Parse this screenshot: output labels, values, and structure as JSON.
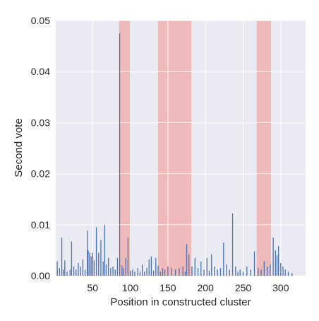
{
  "chart_data": {
    "type": "bar",
    "title": "",
    "xlabel": "Position in constructed cluster",
    "ylabel": "Second vote",
    "xlim": [
      1,
      333
    ],
    "ylim": [
      0,
      0.05
    ],
    "xticks": [
      50,
      100,
      150,
      200,
      250,
      300
    ],
    "yticks": [
      0.0,
      0.01,
      0.02,
      0.03,
      0.04,
      0.05
    ],
    "ytick_labels": [
      "0.00",
      "0.01",
      "0.02",
      "0.03",
      "0.04",
      "0.05"
    ],
    "grid": true,
    "legend": "none",
    "highlight_regions": [
      {
        "start": 85,
        "end": 101
      },
      {
        "start": 137,
        "end": 181
      },
      {
        "start": 268,
        "end": 287
      }
    ],
    "x": [
      3,
      6,
      9,
      11,
      13,
      16,
      20,
      22,
      25,
      28,
      31,
      34,
      37,
      40,
      43,
      44,
      46,
      48,
      50,
      52,
      55,
      58,
      61,
      64,
      66,
      68,
      71,
      74,
      77,
      80,
      83,
      86,
      89,
      91,
      94,
      97,
      100,
      103,
      106,
      110,
      113,
      116,
      119,
      122,
      125,
      128,
      131,
      134,
      137,
      140,
      143,
      146,
      150,
      155,
      160,
      165,
      170,
      173,
      175,
      178,
      182,
      186,
      190,
      194,
      198,
      202,
      205,
      208,
      212,
      216,
      220,
      224,
      228,
      232,
      236,
      240,
      243,
      246,
      250,
      255,
      260,
      265,
      270,
      274,
      278,
      282,
      286,
      290,
      293,
      295,
      297,
      300,
      303,
      306,
      310,
      315
    ],
    "values": [
      0.0028,
      0.0015,
      0.0075,
      0.0012,
      0.003,
      0.0008,
      0.0012,
      0.0067,
      0.0018,
      0.0012,
      0.0025,
      0.0018,
      0.0032,
      0.0012,
      0.0088,
      0.005,
      0.0045,
      0.0038,
      0.0045,
      0.003,
      0.0095,
      0.0045,
      0.007,
      0.0028,
      0.01,
      0.0022,
      0.0035,
      0.0015,
      0.0018,
      0.0012,
      0.0035,
      0.0475,
      0.002,
      0.0015,
      0.0035,
      0.0075,
      0.001,
      0.0012,
      0.0008,
      0.0015,
      0.0008,
      0.0022,
      0.0008,
      0.0015,
      0.0032,
      0.0038,
      0.001,
      0.0035,
      0.002,
      0.0008,
      0.0015,
      0.0012,
      0.0018,
      0.0015,
      0.0012,
      0.0015,
      0.0018,
      0.0008,
      0.0062,
      0.0042,
      0.0018,
      0.0035,
      0.0015,
      0.0028,
      0.0012,
      0.0035,
      0.001,
      0.0042,
      0.0018,
      0.0012,
      0.0015,
      0.0065,
      0.0022,
      0.0012,
      0.0122,
      0.0018,
      0.0008,
      0.0012,
      0.0008,
      0.0018,
      0.0012,
      0.0048,
      0.0015,
      0.0012,
      0.0028,
      0.0018,
      0.0022,
      0.0075,
      0.005,
      0.004,
      0.0058,
      0.0025,
      0.0018,
      0.0012,
      0.0008,
      0.0005
    ]
  }
}
